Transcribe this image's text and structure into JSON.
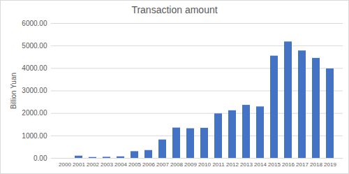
{
  "chart_data": {
    "type": "bar",
    "title": "Transaction amount",
    "y_label": "Billion Yuan",
    "categories": [
      "2000",
      "2001",
      "2002",
      "2003",
      "2004",
      "2005",
      "2006",
      "2007",
      "2008",
      "2009",
      "2010",
      "2011",
      "2012",
      "2013",
      "2014",
      "2015",
      "2016",
      "2017",
      "2018",
      "2019"
    ],
    "values": [
      0,
      100,
      40,
      50,
      70,
      300,
      350,
      820,
      1350,
      1320,
      1340,
      1980,
      2120,
      2360,
      2290,
      4550,
      5180,
      4780,
      4450,
      3980
    ],
    "color": "#4472c4",
    "ylim": [
      0,
      6000
    ],
    "yticks": [
      {
        "value": 0,
        "label": "0.00"
      },
      {
        "value": 1000,
        "label": "1000.00"
      },
      {
        "value": 2000,
        "label": "2000.00"
      },
      {
        "value": 3000,
        "label": "3000.00"
      },
      {
        "value": 4000,
        "label": "4000.00"
      },
      {
        "value": 5000,
        "label": "5000.00"
      },
      {
        "value": 6000,
        "label": "6000.00"
      }
    ],
    "grid": true
  }
}
